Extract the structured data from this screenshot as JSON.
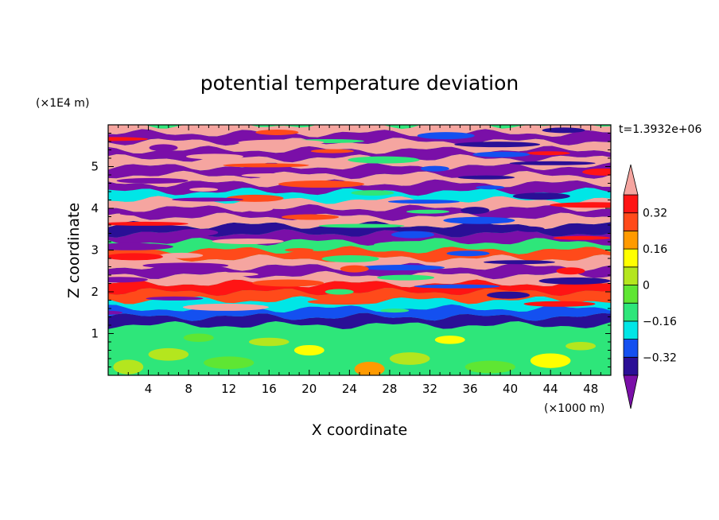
{
  "chart_data": {
    "type": "heatmap",
    "title": "potential temperature deviation",
    "xlabel": "X coordinate",
    "ylabel": "Z coordinate",
    "x_unit": "(×1000 m)",
    "y_unit": "(×1E4 m)",
    "time_label": "t=1.3932e+06",
    "xlim": [
      0,
      50
    ],
    "ylim": [
      0,
      6
    ],
    "x_ticks": [
      4,
      8,
      12,
      16,
      20,
      24,
      28,
      32,
      36,
      40,
      44,
      48
    ],
    "y_ticks": [
      1,
      2,
      3,
      4,
      5
    ],
    "colorbar": {
      "levels": [
        -0.4,
        -0.32,
        -0.24,
        -0.16,
        -0.08,
        0,
        0.08,
        0.16,
        0.24,
        0.32,
        0.4
      ],
      "labels": [
        "0.32",
        "0.16",
        "0",
        "−0.16",
        "−0.32"
      ],
      "label_values": [
        0.32,
        0.16,
        0,
        -0.16,
        -0.32
      ],
      "colors": [
        "#7a0fa8",
        "#2a0f96",
        "#1450f0",
        "#00e6e6",
        "#2ee67a",
        "#5fe633",
        "#b4e61e",
        "#ffff00",
        "#ff9a00",
        "#ff4a1a",
        "#ff1414",
        "#f5a5a0"
      ],
      "extend": "both"
    }
  }
}
